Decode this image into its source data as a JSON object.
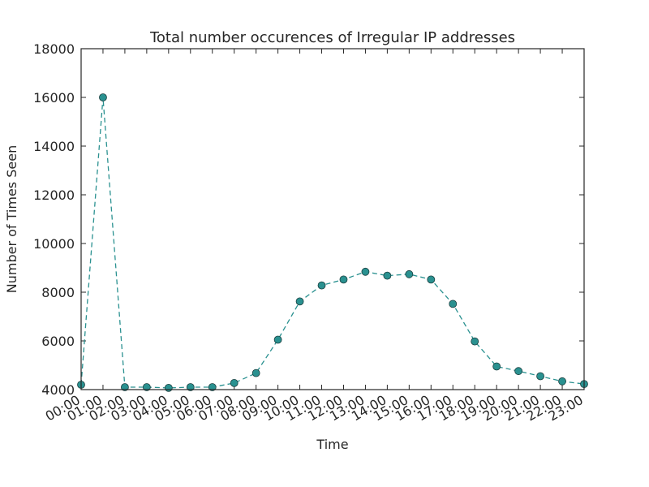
{
  "chart_data": {
    "type": "line",
    "title": "Total number occurences of Irregular IP addresses",
    "xlabel": "Time",
    "ylabel": "Number of Times Seen",
    "categories": [
      "00:00",
      "01:00",
      "02:00",
      "03:00",
      "04:00",
      "05:00",
      "06:00",
      "07:00",
      "08:00",
      "09:00",
      "10:00",
      "11:00",
      "12:00",
      "13:00",
      "14:00",
      "15:00",
      "16:00",
      "17:00",
      "18:00",
      "19:00",
      "20:00",
      "21:00",
      "22:00",
      "23:00"
    ],
    "series": [
      {
        "values": [
          4200,
          16000,
          4100,
          4100,
          4070,
          4100,
          4100,
          4270,
          4680,
          6050,
          7620,
          8280,
          8520,
          8840,
          8680,
          8740,
          8520,
          7520,
          5980,
          4950,
          4760,
          4550,
          4340,
          4230
        ],
        "color": "#2a9190",
        "line_style": "dashed",
        "marker": "circle"
      }
    ],
    "ylim": [
      4000,
      18000
    ],
    "yticks": [
      4000,
      6000,
      8000,
      10000,
      12000,
      14000,
      16000,
      18000
    ],
    "grid": false,
    "legend": "none",
    "xtick_rotation": "angled"
  }
}
